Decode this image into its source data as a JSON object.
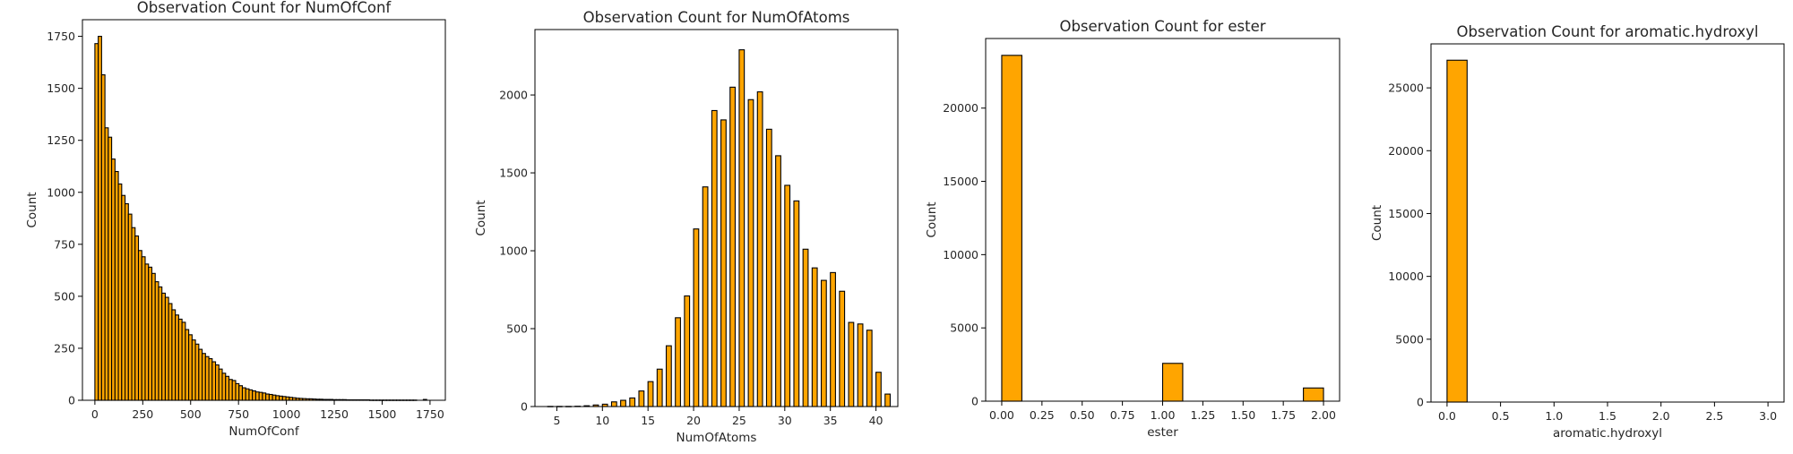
{
  "colors": {
    "bar_fill": "#FFA500",
    "bar_edge": "#000000",
    "axes": "#000000",
    "text": "#262626"
  },
  "chart_data": [
    {
      "type": "bar",
      "title": "Observation Count for NumOfConf",
      "xlabel": "NumOfConf",
      "ylabel": "Count",
      "xlim": [
        -65,
        1830
      ],
      "ylim": [
        0,
        1830
      ],
      "xticks": [
        0,
        250,
        500,
        750,
        1000,
        1250,
        1500,
        1750
      ],
      "xtick_labels": [
        "0",
        "250",
        "500",
        "750",
        "1000",
        "1250",
        "1500",
        "1750"
      ],
      "yticks": [
        0,
        250,
        500,
        750,
        1000,
        1250,
        1500,
        1750
      ],
      "ytick_labels": [
        "0",
        "250",
        "500",
        "750",
        "1000",
        "1250",
        "1500",
        "1750"
      ],
      "bin_width": 17.5,
      "bins_start": [
        0,
        17.5,
        35,
        52.5,
        70,
        87.5,
        105,
        122.5,
        140,
        157.5,
        175,
        192.5,
        210,
        227.5,
        245,
        262.5,
        280,
        297.5,
        315,
        332.5,
        350,
        367.5,
        385,
        402.5,
        420,
        437.5,
        455,
        472.5,
        490,
        507.5,
        525,
        542.5,
        560,
        577.5,
        595,
        612.5,
        630,
        647.5,
        665,
        682.5,
        700,
        717.5,
        735,
        752.5,
        770,
        787.5,
        805,
        822.5,
        840,
        857.5,
        875,
        892.5,
        910,
        927.5,
        945,
        962.5,
        980,
        997.5,
        1015,
        1032.5,
        1050,
        1067.5,
        1085,
        1102.5,
        1120,
        1137.5,
        1155,
        1172.5,
        1190,
        1207.5,
        1225,
        1242.5,
        1260,
        1277.5,
        1295,
        1312.5,
        1330,
        1347.5,
        1365,
        1382.5,
        1400,
        1417.5,
        1435,
        1452.5,
        1470,
        1487.5,
        1505,
        1522.5,
        1540,
        1557.5,
        1575,
        1592.5,
        1610,
        1627.5,
        1645,
        1662.5,
        1680,
        1697.5,
        1715,
        1732.5
      ],
      "values": [
        1715,
        1750,
        1565,
        1310,
        1265,
        1160,
        1100,
        1040,
        985,
        945,
        895,
        830,
        790,
        720,
        690,
        655,
        640,
        610,
        570,
        545,
        515,
        495,
        465,
        435,
        410,
        390,
        375,
        340,
        315,
        290,
        270,
        245,
        225,
        210,
        200,
        185,
        170,
        150,
        130,
        115,
        100,
        95,
        80,
        70,
        60,
        55,
        50,
        45,
        40,
        38,
        35,
        30,
        28,
        25,
        22,
        20,
        18,
        16,
        14,
        12,
        10,
        9,
        8,
        7,
        7,
        6,
        5,
        5,
        4,
        4,
        4,
        3,
        3,
        3,
        3,
        2,
        2,
        2,
        2,
        2,
        2,
        2,
        1,
        1,
        1,
        1,
        1,
        1,
        1,
        1,
        1,
        1,
        1,
        1,
        1,
        1,
        0,
        0,
        4,
        0
      ]
    },
    {
      "type": "bar",
      "title": "Observation Count for NumOfAtoms",
      "xlabel": "NumOfAtoms",
      "ylabel": "Count",
      "xlim": [
        2.6,
        42.4
      ],
      "ylim": [
        0,
        2420
      ],
      "xticks": [
        5,
        10,
        15,
        20,
        25,
        30,
        35,
        40
      ],
      "xtick_labels": [
        "5",
        "10",
        "15",
        "20",
        "25",
        "30",
        "35",
        "40"
      ],
      "yticks": [
        0,
        500,
        1000,
        1500,
        2000
      ],
      "ytick_labels": [
        "0",
        "500",
        "1000",
        "1500",
        "2000"
      ],
      "bin_width": 0.56,
      "bins_start": [
        4,
        5,
        6,
        7,
        8,
        9,
        10,
        11,
        12,
        13,
        14,
        15,
        16,
        17,
        18,
        19,
        20,
        21,
        22,
        23,
        24,
        25,
        26,
        27,
        28,
        29,
        30,
        31,
        32,
        33,
        34,
        35,
        36,
        37,
        38,
        39,
        40,
        41
      ],
      "values": [
        1,
        1,
        1,
        2,
        5,
        10,
        15,
        30,
        40,
        55,
        100,
        160,
        240,
        390,
        570,
        710,
        1140,
        1410,
        1900,
        1840,
        2050,
        2290,
        1970,
        2020,
        1780,
        1610,
        1420,
        1320,
        1010,
        890,
        810,
        860,
        740,
        540,
        530,
        490,
        220,
        80
      ]
    },
    {
      "type": "bar",
      "title": "Observation Count for ester",
      "xlabel": "ester",
      "ylabel": "Count",
      "xlim": [
        -0.1,
        2.1
      ],
      "ylim": [
        0,
        24750
      ],
      "xticks": [
        0,
        0.25,
        0.5,
        0.75,
        1.0,
        1.25,
        1.5,
        1.75,
        2.0
      ],
      "xtick_labels": [
        "0.00",
        "0.25",
        "0.50",
        "0.75",
        "1.00",
        "1.25",
        "1.50",
        "1.75",
        "2.00"
      ],
      "yticks": [
        0,
        5000,
        10000,
        15000,
        20000
      ],
      "ytick_labels": [
        "0",
        "5000",
        "10000",
        "15000",
        "20000"
      ],
      "bin_width": 0.125,
      "bins_start": [
        0,
        0.125,
        0.25,
        0.375,
        0.5,
        0.625,
        0.75,
        0.875,
        1.0,
        1.125,
        1.25,
        1.375,
        1.5,
        1.625,
        1.75,
        1.875
      ],
      "values": [
        23600,
        0,
        0,
        0,
        0,
        0,
        0,
        0,
        2580,
        0,
        0,
        0,
        0,
        0,
        0,
        900
      ]
    },
    {
      "type": "bar",
      "title": "Observation Count for aromatic.hydroxyl",
      "xlabel": "aromatic.hydroxyl",
      "ylabel": "Count",
      "xlim": [
        -0.15,
        3.15
      ],
      "ylim": [
        0,
        28500
      ],
      "xticks": [
        0,
        0.5,
        1.0,
        1.5,
        2.0,
        2.5,
        3.0
      ],
      "xtick_labels": [
        "0.0",
        "0.5",
        "1.0",
        "1.5",
        "2.0",
        "2.5",
        "3.0"
      ],
      "yticks": [
        0,
        5000,
        10000,
        15000,
        20000,
        25000
      ],
      "ytick_labels": [
        "0",
        "5000",
        "10000",
        "15000",
        "20000",
        "25000"
      ],
      "bin_width": 0.1875,
      "bins_start": [
        0,
        0.1875,
        0.375,
        0.5625,
        0.75,
        0.9375,
        1.125,
        1.3125,
        1.5,
        1.6875,
        1.875,
        2.0625,
        2.25,
        2.4375,
        2.625,
        2.8125
      ],
      "values": [
        27200,
        0,
        0,
        0,
        0,
        0,
        0,
        0,
        0,
        0,
        0,
        0,
        0,
        0,
        0,
        0
      ]
    }
  ]
}
